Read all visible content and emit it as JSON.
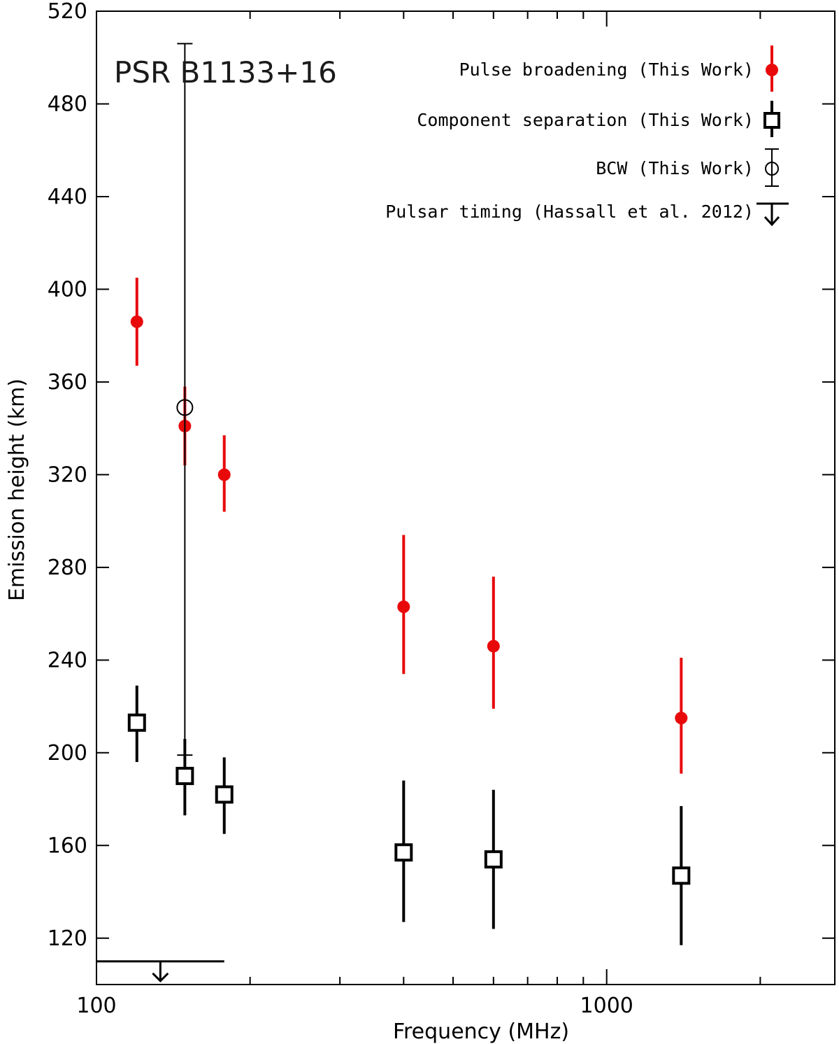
{
  "chart_data": {
    "type": "scatter",
    "title": "PSR B1133+16",
    "xlabel": "Frequency (MHz)",
    "ylabel": "Emission height (km)",
    "xscale": "log",
    "xlim": [
      100,
      2800
    ],
    "ylim": [
      100,
      520
    ],
    "xticks_major": [
      100,
      1000
    ],
    "xtick_labels": [
      "100",
      "1000"
    ],
    "xticks_minor": [
      200,
      300,
      400,
      500,
      600,
      700,
      800,
      900,
      2000
    ],
    "yticks": [
      120,
      160,
      200,
      240,
      280,
      320,
      360,
      400,
      440,
      480,
      520
    ],
    "ytick_labels": [
      "120",
      "160",
      "200",
      "240",
      "280",
      "320",
      "360",
      "400",
      "440",
      "480",
      "520"
    ],
    "grid": false,
    "legend_position": "top-right",
    "colors": {
      "pulse_broadening": "#e8090b",
      "other": "#000000"
    },
    "series": [
      {
        "name": "Pulse broadening (This Work)",
        "marker": "filled-circle",
        "color": "#e8090b",
        "points": [
          {
            "x": 120,
            "y": 386,
            "ylo": 367,
            "yhi": 405
          },
          {
            "x": 149,
            "y": 341,
            "ylo": 324,
            "yhi": 358
          },
          {
            "x": 178,
            "y": 320,
            "ylo": 304,
            "yhi": 337
          },
          {
            "x": 400,
            "y": 263,
            "ylo": 234,
            "yhi": 294
          },
          {
            "x": 600,
            "y": 246,
            "ylo": 219,
            "yhi": 276
          },
          {
            "x": 1400,
            "y": 215,
            "ylo": 191,
            "yhi": 241
          }
        ]
      },
      {
        "name": "Component separation (This Work)",
        "marker": "open-square",
        "color": "#000000",
        "points": [
          {
            "x": 120,
            "y": 213,
            "ylo": 196,
            "yhi": 229
          },
          {
            "x": 149,
            "y": 190,
            "ylo": 173,
            "yhi": 206
          },
          {
            "x": 178,
            "y": 182,
            "ylo": 165,
            "yhi": 198
          },
          {
            "x": 400,
            "y": 157,
            "ylo": 127,
            "yhi": 188
          },
          {
            "x": 600,
            "y": 154,
            "ylo": 124,
            "yhi": 184
          },
          {
            "x": 1400,
            "y": 147,
            "ylo": 117,
            "yhi": 177
          }
        ]
      },
      {
        "name": "BCW (This Work)",
        "marker": "open-circle",
        "color": "#000000",
        "points": [
          {
            "x": 149,
            "y": 349,
            "ylo": 199,
            "yhi": 506
          }
        ]
      },
      {
        "name": "Pulsar timing (Hassall et al. 2012)",
        "marker": "upper-limit",
        "color": "#000000",
        "segments": [
          {
            "x_start": 100,
            "x_end": 178,
            "y": 110
          }
        ]
      }
    ]
  }
}
